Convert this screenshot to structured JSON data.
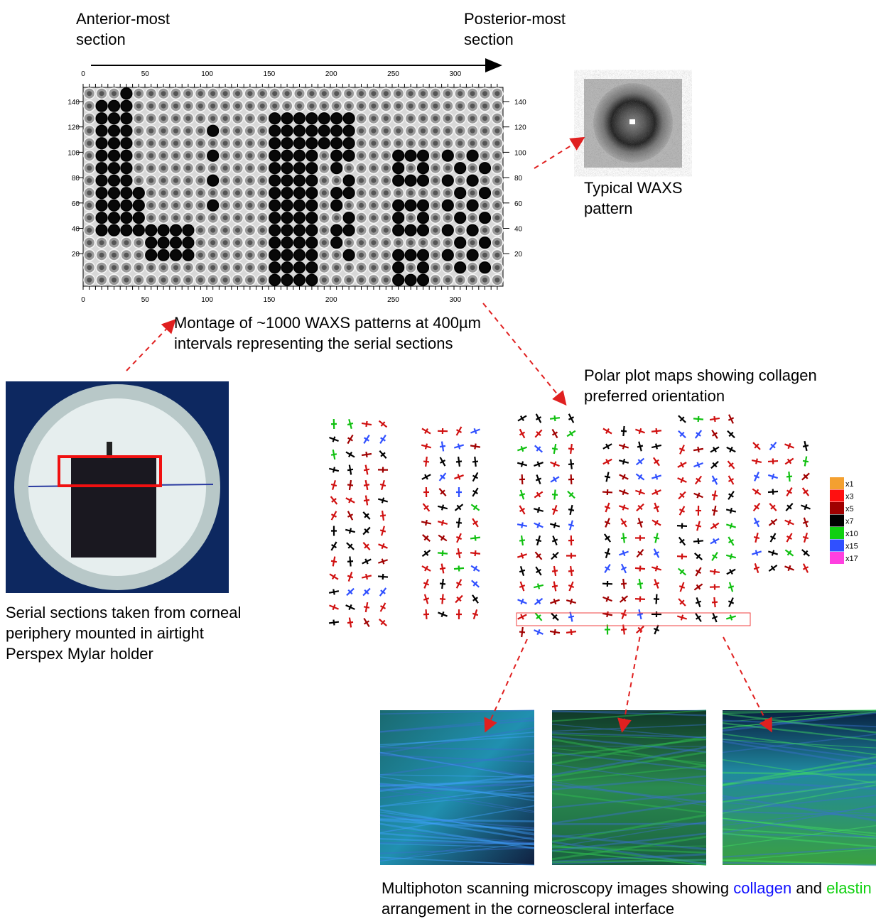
{
  "montage": {
    "start_label": "Anterior-most section",
    "end_label": "Posterior-most section",
    "x_ticks": [
      0,
      50,
      100,
      150,
      200,
      250,
      300
    ],
    "y_ticks": [
      140,
      120,
      100,
      80,
      60,
      40,
      20
    ],
    "caption": "Montage of ~1000 WAXS patterns at 400µm intervals representing the serial sections"
  },
  "waxs": {
    "caption": "Typical WAXS pattern"
  },
  "photo": {
    "caption": "Serial sections taken from corneal periphery mounted in airtight Perspex Mylar holder"
  },
  "polar": {
    "caption": "Polar plot maps showing collagen preferred orientation",
    "legend": [
      {
        "label": "x1",
        "color": "#f4a030"
      },
      {
        "label": "x3",
        "color": "#ff1010"
      },
      {
        "label": "x5",
        "color": "#a00000"
      },
      {
        "label": "x7",
        "color": "#000000"
      },
      {
        "label": "x10",
        "color": "#10d010"
      },
      {
        "label": "x15",
        "color": "#3050ff"
      },
      {
        "label": "x17",
        "color": "#ff40e0"
      }
    ]
  },
  "microscopy": {
    "caption_parts": [
      "Multiphoton scanning microscopy images showing ",
      "collagen",
      " and ",
      "elastin",
      " arrangement in the corneoscleral interface"
    ]
  }
}
